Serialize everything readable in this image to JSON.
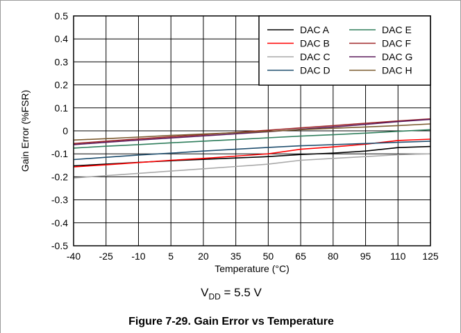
{
  "figure": {
    "caption": "Figure 7-29. Gain Error vs Temperature",
    "condition_prefix": "V",
    "condition_sub": "DD",
    "condition_suffix": " = 5.5 V"
  },
  "chart_data": {
    "type": "line",
    "title": "",
    "xlabel": "Temperature (°C)",
    "ylabel": "Gain Error (%FSR)",
    "xlim": [
      -40,
      125
    ],
    "ylim": [
      -0.5,
      0.5
    ],
    "xticks": [
      -40,
      -25,
      -10,
      5,
      20,
      35,
      50,
      65,
      80,
      95,
      110,
      125
    ],
    "yticks": [
      -0.5,
      -0.4,
      -0.3,
      -0.2,
      -0.1,
      0,
      0.1,
      0.2,
      0.3,
      0.4,
      0.5
    ],
    "ytick_labels": [
      "-0.5",
      "-0.4",
      "-0.3",
      "-0.2",
      "-0.1",
      "0",
      "0.1",
      "0.2",
      "0.3",
      "0.4",
      "0.5"
    ],
    "grid": true,
    "legend_position": "top-right",
    "x": [
      -40,
      -25,
      -10,
      5,
      20,
      35,
      50,
      65,
      80,
      95,
      110,
      125
    ],
    "series": [
      {
        "name": "DAC A",
        "color": "#000000",
        "values": [
          -0.152,
          -0.145,
          -0.137,
          -0.13,
          -0.124,
          -0.118,
          -0.112,
          -0.103,
          -0.097,
          -0.088,
          -0.073,
          -0.068
        ]
      },
      {
        "name": "DAC B",
        "color": "#ff0000",
        "values": [
          -0.157,
          -0.148,
          -0.138,
          -0.128,
          -0.12,
          -0.11,
          -0.1,
          -0.08,
          -0.07,
          -0.058,
          -0.042,
          -0.036
        ]
      },
      {
        "name": "DAC C",
        "color": "#a8a8a8",
        "values": [
          -0.205,
          -0.195,
          -0.185,
          -0.175,
          -0.165,
          -0.155,
          -0.145,
          -0.128,
          -0.12,
          -0.112,
          -0.104,
          -0.1
        ]
      },
      {
        "name": "DAC D",
        "color": "#1f4e6e",
        "values": [
          -0.125,
          -0.115,
          -0.105,
          -0.097,
          -0.088,
          -0.08,
          -0.072,
          -0.065,
          -0.06,
          -0.055,
          -0.05,
          -0.045
        ]
      },
      {
        "name": "DAC E",
        "color": "#2e7d5b",
        "values": [
          -0.075,
          -0.067,
          -0.06,
          -0.052,
          -0.045,
          -0.038,
          -0.03,
          -0.023,
          -0.017,
          -0.01,
          -0.002,
          0.005
        ]
      },
      {
        "name": "DAC F",
        "color": "#a0282a",
        "values": [
          -0.055,
          -0.045,
          -0.035,
          -0.026,
          -0.017,
          -0.007,
          0.003,
          0.013,
          0.023,
          0.033,
          0.043,
          0.052
        ]
      },
      {
        "name": "DAC G",
        "color": "#5b1a5b",
        "values": [
          -0.06,
          -0.05,
          -0.04,
          -0.031,
          -0.022,
          -0.013,
          -0.004,
          0.007,
          0.017,
          0.028,
          0.04,
          0.05
        ]
      },
      {
        "name": "DAC H",
        "color": "#7a5a2e",
        "values": [
          -0.04,
          -0.034,
          -0.027,
          -0.02,
          -0.014,
          -0.008,
          -0.002,
          0.005,
          0.011,
          0.017,
          0.023,
          0.03
        ]
      }
    ]
  }
}
